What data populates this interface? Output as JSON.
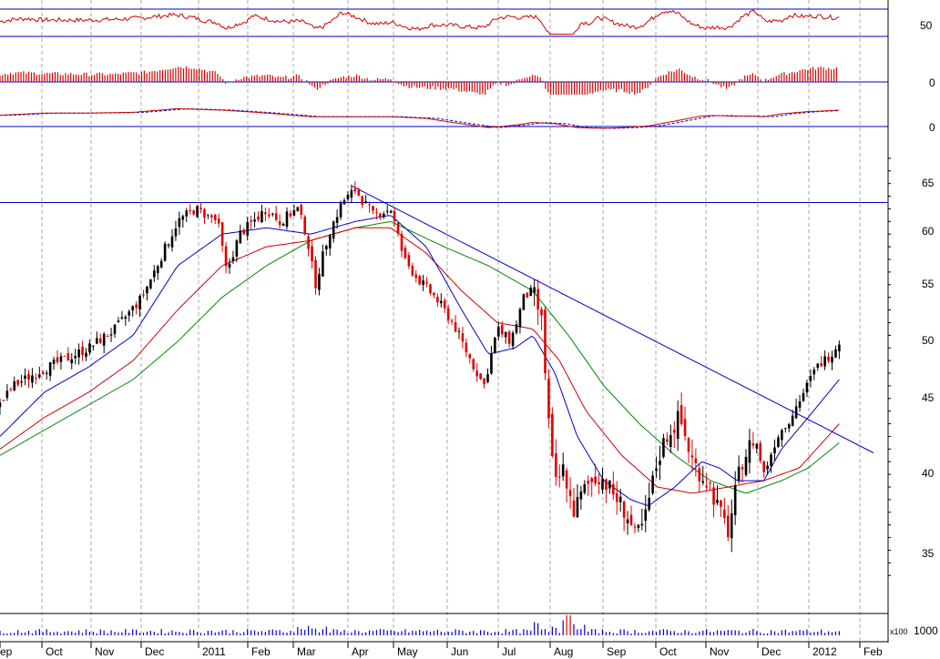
{
  "chart_data": {
    "type": "candlestick",
    "panels": {
      "rsi": {
        "ylabels": [
          "50"
        ],
        "ref_levels": [
          60,
          40
        ],
        "ylim": [
          25,
          75
        ]
      },
      "histogram": {
        "ylabels": [
          "0"
        ]
      },
      "oscillator": {
        "ylabels": [
          "0"
        ]
      },
      "price": {
        "ylabels": [
          "65",
          "60",
          "55",
          "50",
          "45",
          "40",
          "35"
        ],
        "ylim": [
          31,
          67
        ],
        "resistance_level": 62.5,
        "trendline": [
          [
            0.3965,
            63.8
          ],
          [
            0.9835,
            42.7
          ]
        ]
      },
      "volume": {
        "ylabels": [
          "1000"
        ],
        "unit_label": "x100"
      }
    },
    "months": [
      "ep",
      "Oct",
      "Nov",
      "Dec",
      "2011",
      "Feb",
      "Mar",
      "Apr",
      "May",
      "Jun",
      "Jul",
      "Aug",
      "Sep",
      "Oct",
      "Nov",
      "Dec",
      "2012",
      "Feb"
    ],
    "price_keypoints": [
      [
        0.0,
        46.5
      ],
      [
        0.015,
        48.0
      ],
      [
        0.04,
        49.0
      ],
      [
        0.07,
        50.0
      ],
      [
        0.1,
        51.0
      ],
      [
        0.13,
        52.5
      ],
      [
        0.16,
        55.0
      ],
      [
        0.18,
        58.0
      ],
      [
        0.2,
        61.0
      ],
      [
        0.22,
        62.0
      ],
      [
        0.245,
        61.0
      ],
      [
        0.255,
        57.0
      ],
      [
        0.27,
        60.0
      ],
      [
        0.3,
        62.0
      ],
      [
        0.315,
        61.0
      ],
      [
        0.335,
        62.0
      ],
      [
        0.345,
        60.0
      ],
      [
        0.355,
        56.0
      ],
      [
        0.37,
        60.0
      ],
      [
        0.385,
        62.5
      ],
      [
        0.4,
        63.5
      ],
      [
        0.42,
        61.5
      ],
      [
        0.44,
        62.0
      ],
      [
        0.455,
        58.0
      ],
      [
        0.47,
        56.5
      ],
      [
        0.49,
        55.0
      ],
      [
        0.51,
        53.0
      ],
      [
        0.53,
        50.0
      ],
      [
        0.545,
        48.0
      ],
      [
        0.56,
        52.5
      ],
      [
        0.575,
        51.5
      ],
      [
        0.59,
        55.0
      ],
      [
        0.6,
        55.5
      ],
      [
        0.61,
        53.0
      ],
      [
        0.62,
        43.0
      ],
      [
        0.625,
        40.0
      ],
      [
        0.635,
        41.5
      ],
      [
        0.645,
        38.0
      ],
      [
        0.66,
        40.0
      ],
      [
        0.675,
        41.0
      ],
      [
        0.69,
        39.5
      ],
      [
        0.705,
        38.0
      ],
      [
        0.715,
        36.0
      ],
      [
        0.725,
        37.0
      ],
      [
        0.74,
        42.0
      ],
      [
        0.75,
        44.0
      ],
      [
        0.765,
        45.5
      ],
      [
        0.78,
        42.0
      ],
      [
        0.79,
        41.0
      ],
      [
        0.8,
        40.0
      ],
      [
        0.81,
        38.0
      ],
      [
        0.82,
        36.5
      ],
      [
        0.835,
        42.0
      ],
      [
        0.85,
        44.0
      ],
      [
        0.86,
        41.0
      ],
      [
        0.875,
        44.0
      ],
      [
        0.89,
        45.5
      ],
      [
        0.905,
        47.5
      ],
      [
        0.92,
        49.5
      ],
      [
        0.935,
        50.5
      ],
      [
        0.945,
        51.5
      ]
    ],
    "ma_keypoints": {
      "blue": [
        [
          0.0,
          44.0
        ],
        [
          0.05,
          47.5
        ],
        [
          0.1,
          49.5
        ],
        [
          0.15,
          52.0
        ],
        [
          0.2,
          57.5
        ],
        [
          0.25,
          60.0
        ],
        [
          0.3,
          60.5
        ],
        [
          0.35,
          60.0
        ],
        [
          0.4,
          61.0
        ],
        [
          0.44,
          61.5
        ],
        [
          0.48,
          59.0
        ],
        [
          0.52,
          54.0
        ],
        [
          0.55,
          50.5
        ],
        [
          0.58,
          51.0
        ],
        [
          0.6,
          52.0
        ],
        [
          0.625,
          49.0
        ],
        [
          0.65,
          44.0
        ],
        [
          0.68,
          40.5
        ],
        [
          0.71,
          39.0
        ],
        [
          0.73,
          38.5
        ],
        [
          0.76,
          40.0
        ],
        [
          0.79,
          42.0
        ],
        [
          0.81,
          41.5
        ],
        [
          0.83,
          40.5
        ],
        [
          0.86,
          40.5
        ],
        [
          0.88,
          43.0
        ],
        [
          0.91,
          45.5
        ],
        [
          0.945,
          48.5
        ]
      ],
      "red": [
        [
          0.0,
          43.0
        ],
        [
          0.05,
          45.5
        ],
        [
          0.1,
          47.5
        ],
        [
          0.15,
          50.0
        ],
        [
          0.2,
          54.0
        ],
        [
          0.25,
          57.5
        ],
        [
          0.3,
          59.0
        ],
        [
          0.35,
          59.5
        ],
        [
          0.4,
          60.5
        ],
        [
          0.44,
          60.5
        ],
        [
          0.48,
          58.5
        ],
        [
          0.52,
          55.5
        ],
        [
          0.56,
          53.0
        ],
        [
          0.6,
          52.5
        ],
        [
          0.63,
          50.0
        ],
        [
          0.66,
          46.0
        ],
        [
          0.7,
          42.5
        ],
        [
          0.74,
          40.0
        ],
        [
          0.78,
          39.5
        ],
        [
          0.82,
          40.0
        ],
        [
          0.86,
          40.5
        ],
        [
          0.9,
          41.5
        ],
        [
          0.945,
          45.0
        ]
      ],
      "green": [
        [
          0.0,
          42.5
        ],
        [
          0.05,
          44.5
        ],
        [
          0.1,
          46.5
        ],
        [
          0.15,
          48.5
        ],
        [
          0.2,
          51.5
        ],
        [
          0.25,
          55.0
        ],
        [
          0.3,
          57.5
        ],
        [
          0.35,
          59.5
        ],
        [
          0.4,
          60.5
        ],
        [
          0.44,
          61.0
        ],
        [
          0.5,
          59.0
        ],
        [
          0.55,
          57.5
        ],
        [
          0.6,
          55.5
        ],
        [
          0.64,
          52.0
        ],
        [
          0.68,
          48.0
        ],
        [
          0.72,
          45.0
        ],
        [
          0.76,
          42.5
        ],
        [
          0.8,
          40.5
        ],
        [
          0.84,
          39.5
        ],
        [
          0.88,
          40.5
        ],
        [
          0.91,
          41.5
        ],
        [
          0.945,
          43.5
        ]
      ]
    },
    "colors": {
      "grid_month": "#a8a8a8",
      "ref_line": "#0000c8",
      "candle": "#000000",
      "candle_down": "#e00000",
      "ma_blue": "#0000cc",
      "ma_red": "#d00000",
      "ma_green": "#008800",
      "rsi": "#d00000",
      "hist": "#d00000",
      "osc_solid": "#d00000",
      "osc_dash": "#0000cc",
      "volume": "#0000cc",
      "volume_tall": "#e00000",
      "axis": "#000000"
    }
  }
}
